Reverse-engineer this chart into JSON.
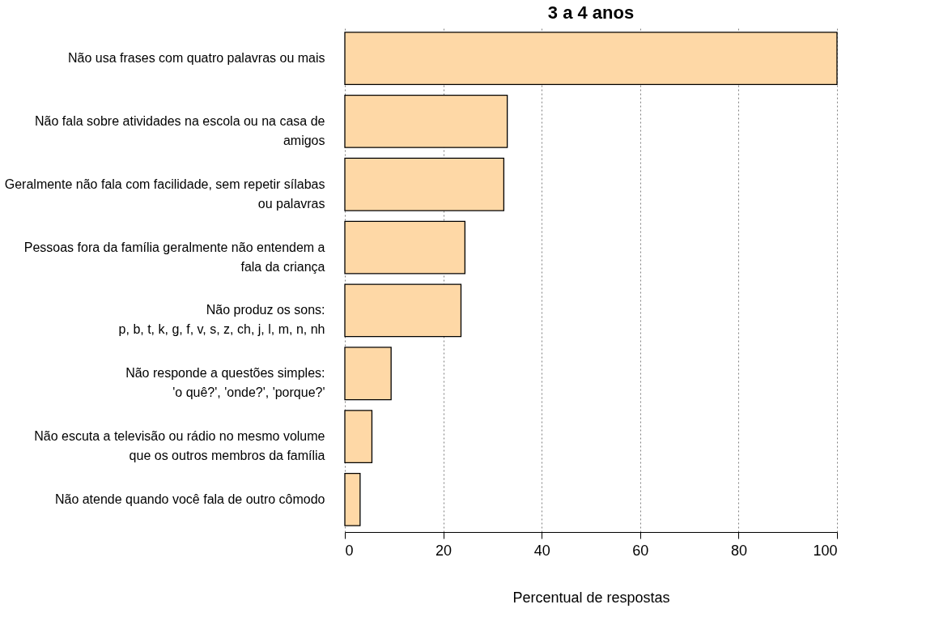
{
  "chart_data": {
    "type": "bar",
    "orientation": "horizontal",
    "title": "3 a 4 anos",
    "xlabel": "Percentual de respostas",
    "categories": [
      "Não usa frases com quatro palavras ou mais",
      "Não fala sobre atividades na escola ou na casa de\namigos",
      "Geralmente não fala com facilidade, sem repetir sílabas\nou palavras",
      "Pessoas fora da família geralmente não entendem a\nfala da criança",
      "Não produz os sons:\np, b, t, k, g, f, v, s, z, ch, j, l, m, n, nh",
      "Não responde a questões simples:\n'o quê?', 'onde?', 'porque?'",
      "Não escuta a televisão ou rádio no mesmo volume\nque os outros membros da família",
      "Não atende quando você fala de outro cômodo"
    ],
    "values": [
      100,
      33.0,
      32.3,
      24.4,
      23.6,
      9.4,
      5.5,
      3.1
    ],
    "color": "#fed8a6",
    "xlim": [
      0,
      100
    ],
    "xticks": [
      0,
      20,
      40,
      60,
      80,
      100
    ],
    "grid": "x"
  }
}
